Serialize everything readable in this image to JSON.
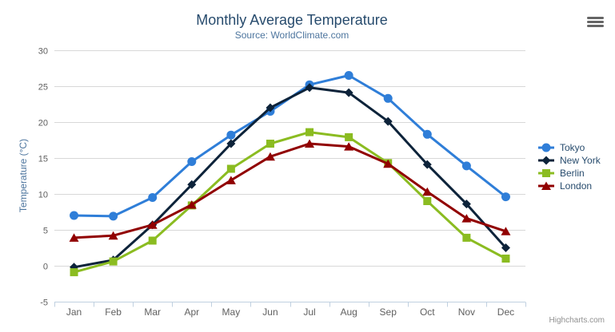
{
  "header": {
    "title": "Monthly Average Temperature",
    "subtitle": "Source: WorldClimate.com"
  },
  "credits": "Highcharts.com",
  "export_icon": "hamburger-menu",
  "chart_data": {
    "type": "line",
    "title": "Monthly Average Temperature",
    "subtitle": "Source: WorldClimate.com",
    "categories": [
      "Jan",
      "Feb",
      "Mar",
      "Apr",
      "May",
      "Jun",
      "Jul",
      "Aug",
      "Sep",
      "Oct",
      "Nov",
      "Dec"
    ],
    "series": [
      {
        "name": "Tokyo",
        "color": "#2f7ed8",
        "marker": "circle",
        "values": [
          7.0,
          6.9,
          9.5,
          14.5,
          18.2,
          21.5,
          25.2,
          26.5,
          23.3,
          18.3,
          13.9,
          9.6
        ]
      },
      {
        "name": "New York",
        "color": "#0d233a",
        "marker": "diamond",
        "values": [
          -0.2,
          0.8,
          5.7,
          11.3,
          17.0,
          22.0,
          24.8,
          24.1,
          20.1,
          14.1,
          8.6,
          2.5
        ]
      },
      {
        "name": "Berlin",
        "color": "#8bbc21",
        "marker": "square",
        "values": [
          -0.9,
          0.6,
          3.5,
          8.4,
          13.5,
          17.0,
          18.6,
          17.9,
          14.3,
          9.0,
          3.9,
          1.0
        ]
      },
      {
        "name": "London",
        "color": "#910000",
        "marker": "triangle",
        "values": [
          3.9,
          4.2,
          5.7,
          8.5,
          11.9,
          15.2,
          17.0,
          16.6,
          14.2,
          10.3,
          6.6,
          4.8
        ]
      }
    ],
    "xlabel": "",
    "ylabel": "Temperature (°C)",
    "ylim": [
      -5,
      30
    ],
    "yticks": [
      -5,
      0,
      5,
      10,
      15,
      20,
      25,
      30
    ],
    "grid": true,
    "legend_position": "right",
    "colors": {
      "grid": "#d8d8d8",
      "axis_line": "#c0d0e0",
      "tick": "#c0d0e0",
      "axis_label": "#606060",
      "title": "#274b6d",
      "subtitle": "#4d759e",
      "axis_title": "#4d759e",
      "legend_text": "#274b6d",
      "credits": "#909090"
    }
  }
}
